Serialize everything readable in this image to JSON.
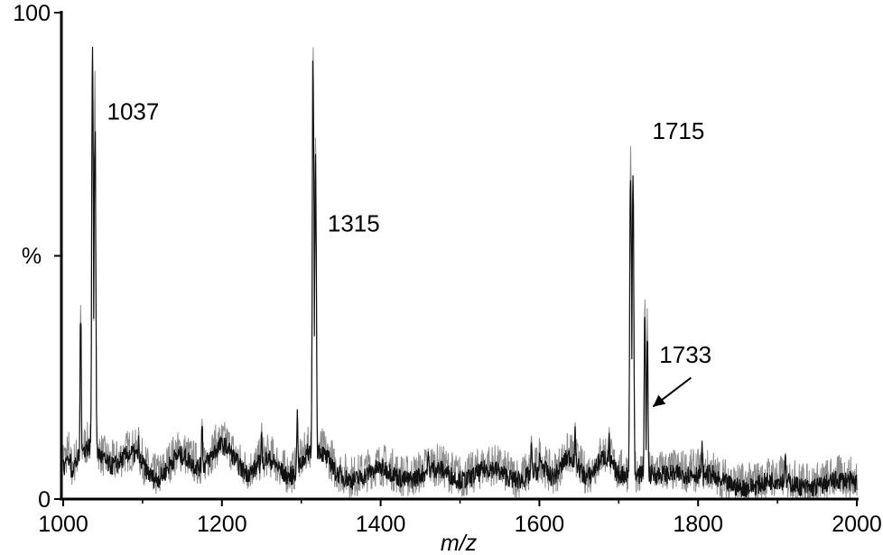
{
  "chart_data": {
    "type": "line",
    "xlabel": "m/z",
    "ylabel": "%",
    "xlim": [
      1000,
      2000
    ],
    "ylim": [
      0,
      100
    ],
    "x_ticks": [
      "1000",
      "1200",
      "1400",
      "1600",
      "1800",
      "2000"
    ],
    "y_ticks": [
      "0",
      "100"
    ],
    "grid": false,
    "peaks": [
      {
        "x": 1022,
        "y": 42
      },
      {
        "x": 1037,
        "y": 95
      },
      {
        "x": 1040,
        "y": 88
      },
      {
        "x": 1095,
        "y": 16
      },
      {
        "x": 1175,
        "y": 17
      },
      {
        "x": 1250,
        "y": 16
      },
      {
        "x": 1295,
        "y": 19
      },
      {
        "x": 1315,
        "y": 100
      },
      {
        "x": 1318,
        "y": 75
      },
      {
        "x": 1460,
        "y": 11
      },
      {
        "x": 1590,
        "y": 14
      },
      {
        "x": 1645,
        "y": 17
      },
      {
        "x": 1688,
        "y": 15
      },
      {
        "x": 1715,
        "y": 77
      },
      {
        "x": 1718,
        "y": 70
      },
      {
        "x": 1733,
        "y": 44
      },
      {
        "x": 1736,
        "y": 40
      },
      {
        "x": 1805,
        "y": 12
      },
      {
        "x": 1910,
        "y": 10
      }
    ],
    "annotations": [
      {
        "text": "1037",
        "x": 1037
      },
      {
        "text": "1315",
        "x": 1315
      },
      {
        "text": "1715",
        "x": 1715
      },
      {
        "text": "1733",
        "x": 1733,
        "arrow": true
      }
    ]
  }
}
